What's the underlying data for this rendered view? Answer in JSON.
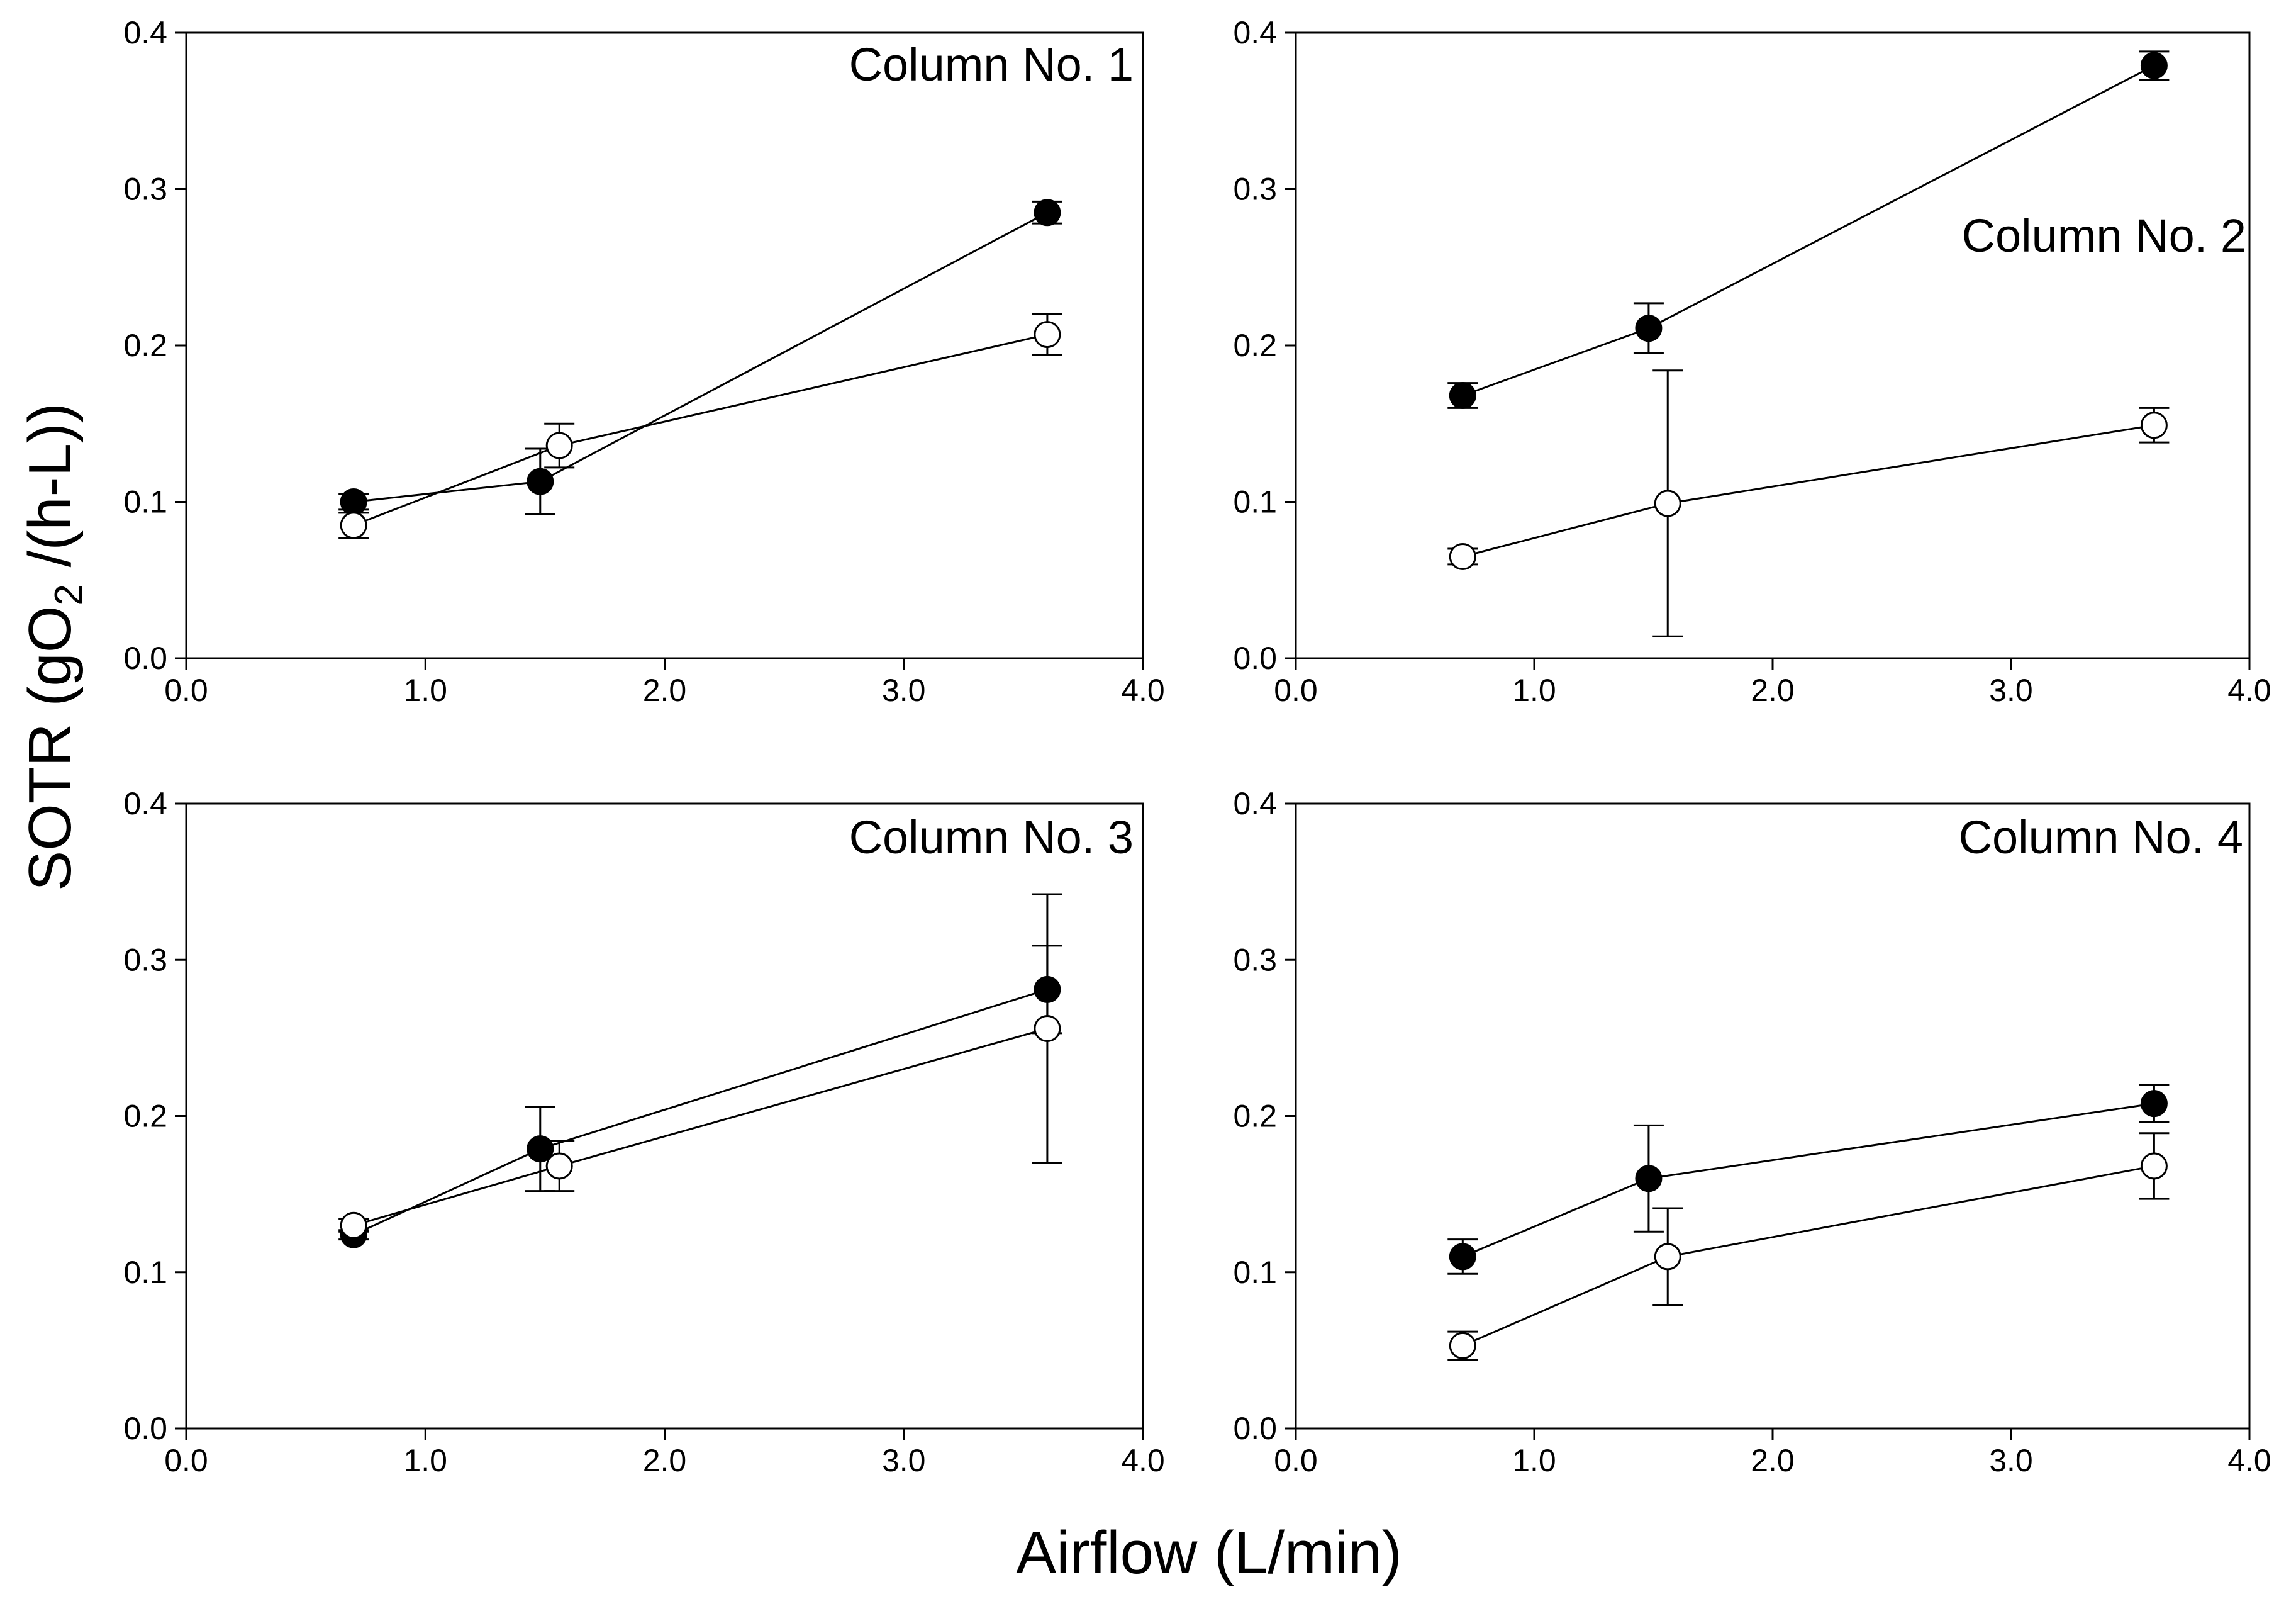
{
  "figure": {
    "xlabel": "Airflow (L/min)",
    "ylabel_prefix": "SOTR (gO",
    "ylabel_subscript": "2",
    "ylabel_suffix": " /(h-L))"
  },
  "chart_data": [
    {
      "type": "scatter",
      "title": "Column No. 1",
      "title_position": "top-right",
      "xlim": [
        0,
        4
      ],
      "ylim": [
        0,
        0.4
      ],
      "xticks": [
        "0.0",
        "1.0",
        "2.0",
        "3.0",
        "4.0"
      ],
      "yticks": [
        "0.0",
        "0.1",
        "0.2",
        "0.3",
        "0.4"
      ],
      "series": [
        {
          "name": "filled",
          "marker": "filled-circle",
          "color": "#000000",
          "x": [
            0.7,
            1.48,
            3.6
          ],
          "y": [
            0.1,
            0.113,
            0.285
          ],
          "err": [
            0.005,
            0.021,
            0.007
          ]
        },
        {
          "name": "open",
          "marker": "open-circle",
          "color": "#000000",
          "x": [
            0.7,
            1.56,
            3.6
          ],
          "y": [
            0.085,
            0.136,
            0.207
          ],
          "err": [
            0.008,
            0.014,
            0.013
          ]
        }
      ]
    },
    {
      "type": "scatter",
      "title": "Column No. 2",
      "title_position": "upper-right",
      "xlim": [
        0,
        4
      ],
      "ylim": [
        0,
        0.4
      ],
      "xticks": [
        "0.0",
        "1.0",
        "2.0",
        "3.0",
        "4.0"
      ],
      "yticks": [
        "0.0",
        "0.1",
        "0.2",
        "0.3",
        "0.4"
      ],
      "series": [
        {
          "name": "filled",
          "marker": "filled-circle",
          "color": "#000000",
          "x": [
            0.7,
            1.48,
            3.6
          ],
          "y": [
            0.168,
            0.211,
            0.379
          ],
          "err": [
            0.008,
            0.016,
            0.009
          ]
        },
        {
          "name": "open",
          "marker": "open-circle",
          "color": "#000000",
          "x": [
            0.7,
            1.56,
            3.6
          ],
          "y": [
            0.065,
            0.099,
            0.149
          ],
          "err": [
            0.005,
            0.085,
            0.011
          ]
        }
      ]
    },
    {
      "type": "scatter",
      "title": "Column No. 3",
      "title_position": "top-right",
      "xlim": [
        0,
        4
      ],
      "ylim": [
        0,
        0.4
      ],
      "xticks": [
        "0.0",
        "1.0",
        "2.0",
        "3.0",
        "4.0"
      ],
      "yticks": [
        "0.0",
        "0.1",
        "0.2",
        "0.3",
        "0.4"
      ],
      "series": [
        {
          "name": "filled",
          "marker": "filled-circle",
          "color": "#000000",
          "x": [
            0.7,
            1.48,
            3.6
          ],
          "y": [
            0.124,
            0.179,
            0.281
          ],
          "err": [
            0.003,
            0.027,
            0.028
          ]
        },
        {
          "name": "open",
          "marker": "open-circle",
          "color": "#000000",
          "x": [
            0.7,
            1.56,
            3.6
          ],
          "y": [
            0.13,
            0.168,
            0.256
          ],
          "err": [
            0.004,
            0.016,
            0.086
          ]
        }
      ]
    },
    {
      "type": "scatter",
      "title": "Column No. 4",
      "title_position": "top-right",
      "xlim": [
        0,
        4
      ],
      "ylim": [
        0,
        0.4
      ],
      "xticks": [
        "0.0",
        "1.0",
        "2.0",
        "3.0",
        "4.0"
      ],
      "yticks": [
        "0.0",
        "0.1",
        "0.2",
        "0.3",
        "0.4"
      ],
      "series": [
        {
          "name": "filled",
          "marker": "filled-circle",
          "color": "#000000",
          "x": [
            0.7,
            1.48,
            3.6
          ],
          "y": [
            0.11,
            0.16,
            0.208
          ],
          "err": [
            0.011,
            0.034,
            0.012
          ]
        },
        {
          "name": "open",
          "marker": "open-circle",
          "color": "#000000",
          "x": [
            0.7,
            1.56,
            3.6
          ],
          "y": [
            0.053,
            0.11,
            0.168
          ],
          "err": [
            0.009,
            0.031,
            0.021
          ]
        }
      ]
    }
  ]
}
